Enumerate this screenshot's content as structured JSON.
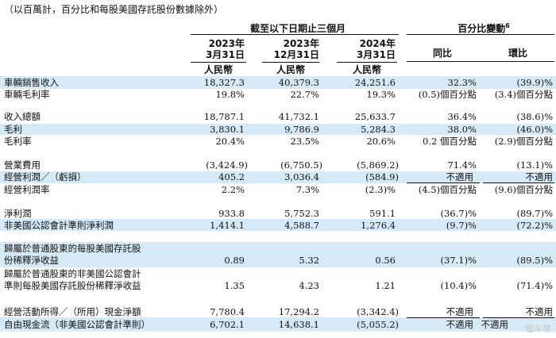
{
  "note": "（以百萬計，百分比和每股美國存託股份數據除外）",
  "header": {
    "group_left": "截至以下日期止三個月",
    "group_right": "百分比變動",
    "group_right_sup": "6",
    "periods": [
      {
        "year": "2023年",
        "date": "3月31日",
        "currency": "人民幣"
      },
      {
        "year": "2023年",
        "date": "12月31日",
        "currency": "人民幣"
      },
      {
        "year": "2024年",
        "date": "3月31日",
        "currency": "人民幣"
      }
    ],
    "yoy": "同比",
    "qoq": "環比"
  },
  "rows": [
    {
      "label": "車輛銷售收入",
      "v1": "18,327.3",
      "v2": "40,379.3",
      "v3": "24,251.6",
      "yoy": "32.3%",
      "qoq": "(39.9)%"
    },
    {
      "label": "車輛毛利率",
      "v1": "19.8%",
      "v2": "22.7%",
      "v3": "19.3%",
      "yoy": "(0.5)個百分點",
      "qoq": "(3.4)個百分點"
    },
    {
      "label": "收入總額",
      "v1": "18,787.1",
      "v2": "41,732.1",
      "v3": "25,633.7",
      "yoy": "36.4%",
      "qoq": "(38.6)%"
    },
    {
      "label": "毛利",
      "v1": "3,830.1",
      "v2": "9,786.9",
      "v3": "5,284.3",
      "yoy": "38.0%",
      "qoq": "(46.0)%"
    },
    {
      "label": "毛利率",
      "v1": "20.4%",
      "v2": "23.5%",
      "v3": "20.6%",
      "yoy": "0.2 個百分點",
      "qoq": "(2.9)個百分點"
    },
    {
      "label": "營業費用",
      "v1": "(3,424.9)",
      "v2": "(6,750.5)",
      "v3": "(5,869.2)",
      "yoy": "71.4%",
      "qoq": "(13.1)%"
    },
    {
      "label": "經營利潤／（虧損）",
      "v1": "405.2",
      "v2": "3,036.4",
      "v3": "(584.9)",
      "yoy": "不適用",
      "qoq": "不適用"
    },
    {
      "label": "經營利潤率",
      "v1": "2.2%",
      "v2": "7.3%",
      "v3": "(2.3)%",
      "yoy": "(4.5)個百分點",
      "qoq": "(9.6)個百分點"
    },
    {
      "label": "淨利潤",
      "v1": "933.8",
      "v2": "5,752.3",
      "v3": "591.1",
      "yoy": "(36.7)%",
      "qoq": "(89.7)%"
    },
    {
      "label": "非美國公認會計準則淨利潤",
      "v1": "1,414.1",
      "v2": "4,588.7",
      "v3": "1,276.4",
      "yoy": "(9.7)%",
      "qoq": "(72.2)%"
    },
    {
      "label_line1": "歸屬於普通股東的每股美國存託股",
      "label_line2": "份稀釋淨收益",
      "v1": "0.89",
      "v2": "5.32",
      "v3": "0.56",
      "yoy": "(37.1)%",
      "qoq": "(89.5)%"
    },
    {
      "label_line1": "歸屬於普通股東的非美國公認會計",
      "label_line2": "準則每股美國存託股份稀釋淨收益",
      "v1": "1.35",
      "v2": "4.23",
      "v3": "1.21",
      "yoy": "(10.4)%",
      "qoq": "(71.4)%"
    },
    {
      "label": "經營活動所得／（所用）現金淨額",
      "v1": "7,780.4",
      "v2": "17,294.2",
      "v3": "(3,342.4)",
      "yoy": "不適用",
      "qoq": "不適用"
    },
    {
      "label": "自由現金流（非美國公認會計準則）",
      "v1": "6,702.1",
      "v2": "14,638.1",
      "v3": "(5,055.2)",
      "yoy": "不適用",
      "qoq": "不適用"
    }
  ],
  "watermark": "懂车帝"
}
